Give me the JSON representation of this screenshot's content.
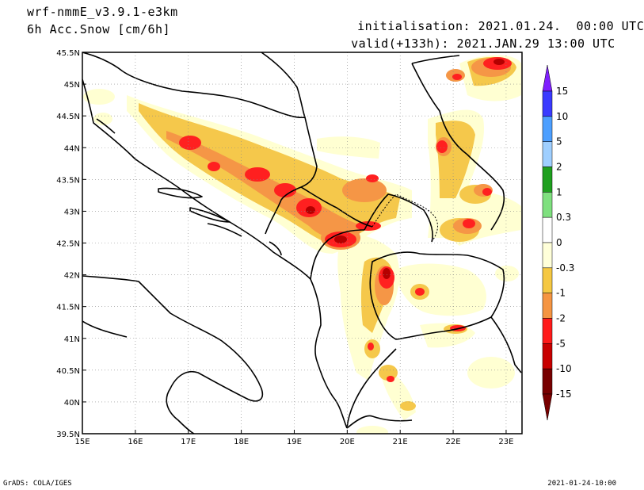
{
  "header": {
    "model": "wrf-nmmE_v3.9.1-e3km",
    "field": "6h Acc.Snow [cm/6h]",
    "init_label": "initialisation:",
    "init_value": "2021.01.24.  00:00 UTC",
    "valid_label": "valid(+133h):",
    "valid_value": "2021.JAN.29 13:00 UTC"
  },
  "map": {
    "lon_ticks": [
      "15E",
      "16E",
      "17E",
      "18E",
      "19E",
      "20E",
      "21E",
      "22E",
      "23E"
    ],
    "lat_ticks": [
      "45.5N",
      "45N",
      "44.5N",
      "44N",
      "43.5N",
      "43N",
      "42.5N",
      "42N",
      "41.5N",
      "41N",
      "40.5N",
      "40N",
      "39.5N"
    ],
    "lon_range": [
      15,
      23.3
    ],
    "lat_range": [
      39.5,
      45.5
    ],
    "grid": "dotted"
  },
  "colorbar": {
    "labels": [
      "15",
      "10",
      "5",
      "2",
      "1",
      "0.3",
      "0",
      "-0.3",
      "-1",
      "-2",
      "-5",
      "-10",
      "-15"
    ],
    "colors": [
      "#7f1fff",
      "#3a3aff",
      "#4d9fff",
      "#9fcfff",
      "#1fa01f",
      "#7fe07f",
      "#ffffff",
      "#ffffd9",
      "#f5c842",
      "#f59542",
      "#ff1a1a",
      "#c80000",
      "#780000"
    ]
  },
  "footer": {
    "left": "GrADS: COLA/IGES",
    "right": "2021-01-24-10:00"
  },
  "snow_palette": {
    "light": "#ffffd2",
    "moderate": "#f5c84b",
    "heavy": "#f59646",
    "very_heavy": "#ff2020",
    "extreme": "#b40000"
  }
}
